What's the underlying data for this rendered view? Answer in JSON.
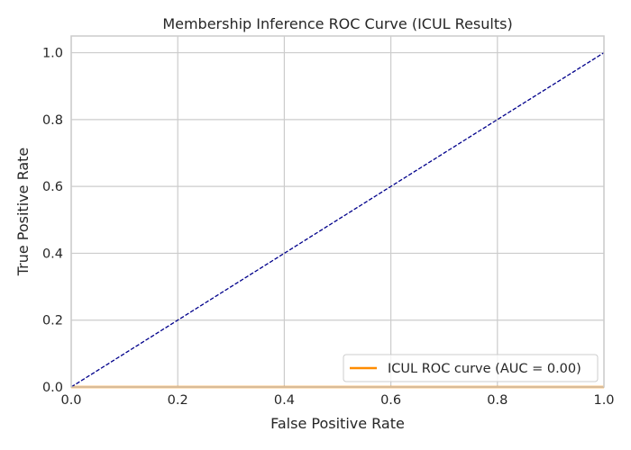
{
  "chart_data": {
    "type": "line",
    "title": "Membership Inference ROC Curve (ICUL Results)",
    "xlabel": "False Positive Rate",
    "ylabel": "True Positive Rate",
    "xlim": [
      0.0,
      1.0
    ],
    "ylim": [
      0.0,
      1.05
    ],
    "xticks": [
      "0.0",
      "0.2",
      "0.4",
      "0.6",
      "0.8",
      "1.0"
    ],
    "yticks": [
      "0.0",
      "0.2",
      "0.4",
      "0.6",
      "0.8",
      "1.0"
    ],
    "grid": true,
    "legend_position": "lower-right",
    "series": [
      {
        "name": "ICUL ROC curve (AUC = 0.00)",
        "color": "#ff8c00",
        "style": "solid",
        "x": [
          0.0,
          1.0
        ],
        "y": [
          0.0,
          0.0
        ]
      },
      {
        "name": "",
        "color": "#00008b",
        "style": "dashed",
        "x": [
          0.0,
          1.0
        ],
        "y": [
          0.0,
          1.0
        ]
      }
    ]
  }
}
